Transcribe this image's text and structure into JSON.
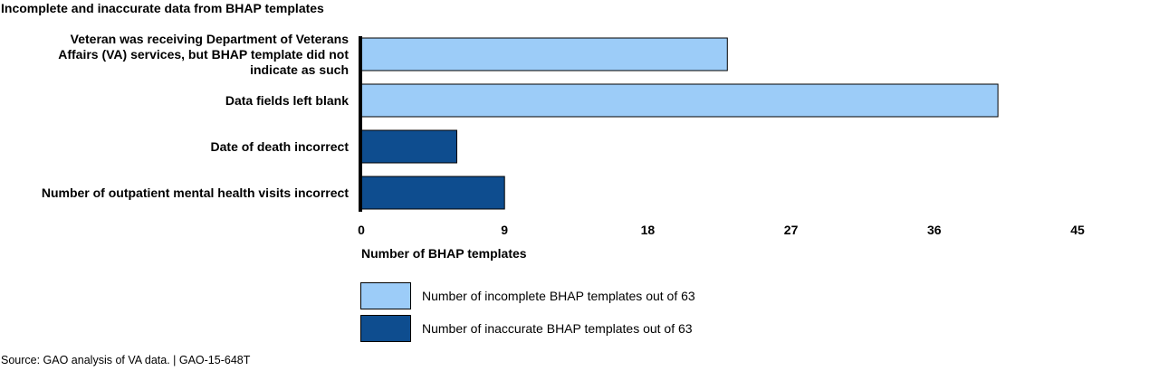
{
  "title": "Incomplete and inaccurate data from BHAP templates",
  "source": "Source: GAO analysis of VA data. | GAO-15-648T",
  "colors": {
    "incomplete": "#9cccf8",
    "inaccurate": "#0e4d8f"
  },
  "legend": [
    {
      "label": "Number of incomplete BHAP templates out of 63",
      "color": "#9cccf8"
    },
    {
      "label": "Number of inaccurate BHAP templates out of 63",
      "color": "#0e4d8f"
    }
  ],
  "chart_data": {
    "type": "bar",
    "orientation": "horizontal",
    "title": "Incomplete and inaccurate data from BHAP templates",
    "xlabel": "Number of BHAP templates",
    "ylabel": "",
    "xlim": [
      0,
      45
    ],
    "xticks": [
      0,
      9,
      18,
      27,
      36,
      45
    ],
    "grid": false,
    "legend_position": "bottom",
    "categories": [
      [
        "Veteran was receiving Department of Veterans",
        "Affairs (VA) services, but BHAP template did not",
        "indicate as such"
      ],
      [
        "Data fields left blank"
      ],
      [
        "Date of death incorrect"
      ],
      [
        "Number of outpatient mental health visits incorrect"
      ]
    ],
    "values": [
      23,
      40,
      6,
      9
    ],
    "series_index": [
      0,
      0,
      1,
      1
    ],
    "series": [
      {
        "name": "Number of incomplete BHAP templates out of 63"
      },
      {
        "name": "Number of inaccurate BHAP templates out of 63"
      }
    ]
  }
}
